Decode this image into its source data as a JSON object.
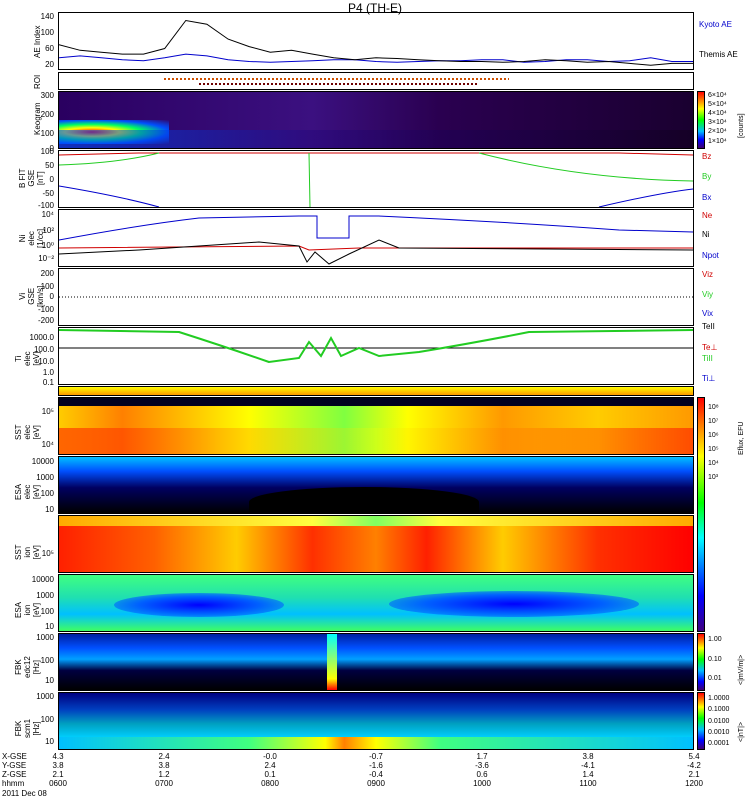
{
  "title": "P4 (TH-E)",
  "colors": {
    "red": "#d00000",
    "green": "#22cc22",
    "blue": "#0000cc",
    "black": "#000000"
  },
  "chart_data": [
    {
      "type": "line",
      "panel": "ae",
      "ylabel": "AE Index",
      "yticks": [
        "140",
        "120",
        "100",
        "80",
        "60",
        "40",
        "20"
      ],
      "ylim": [
        0,
        150
      ],
      "series": [
        {
          "name": "Kyoto AE",
          "color": "#0000cc"
        },
        {
          "name": "Themis AE",
          "color": "#000000"
        }
      ],
      "x_hours": [
        6,
        6.2,
        6.4,
        6.6,
        6.8,
        7.0,
        7.2,
        7.4,
        7.6,
        7.8,
        8.0,
        8.2,
        8.4,
        8.6,
        8.8,
        9.0,
        9.2,
        9.4,
        9.6,
        9.8,
        10.0,
        10.2,
        10.4,
        10.6,
        10.8,
        11.0,
        11.2,
        11.4,
        11.6,
        11.8,
        12.0
      ],
      "kyoto": [
        30,
        35,
        30,
        25,
        22,
        30,
        40,
        35,
        25,
        20,
        18,
        20,
        22,
        25,
        25,
        20,
        18,
        20,
        22,
        22,
        25,
        25,
        18,
        20,
        25,
        25,
        20,
        22,
        30,
        20,
        20
      ],
      "themis": [
        65,
        50,
        45,
        40,
        40,
        55,
        130,
        120,
        80,
        60,
        45,
        50,
        40,
        30,
        25,
        30,
        28,
        25,
        22,
        20,
        20,
        18,
        20,
        25,
        22,
        18,
        20,
        15,
        10,
        15,
        15
      ]
    },
    {
      "type": "line",
      "panel": "roi",
      "ylabel": "ROI",
      "note": "dotted bars"
    },
    {
      "type": "heatmap",
      "panel": "keogram",
      "ylabel": "Keogram",
      "yticks": [
        "300",
        "250",
        "200",
        "150",
        "100",
        "50",
        "0"
      ],
      "ylim": [
        0,
        300
      ],
      "colorbar": {
        "label": "[counts]",
        "ticks": [
          "6×10⁴",
          "5×10⁴",
          "4×10⁴",
          "3×10⁴",
          "2×10⁴",
          "1×10⁴"
        ]
      }
    },
    {
      "type": "line",
      "panel": "bfield",
      "ylabel": "B FIT\nGSE\n[nT]",
      "yticks": [
        "100",
        "50",
        "0",
        "-50",
        "-100"
      ],
      "ylim": [
        -100,
        100
      ],
      "series": [
        {
          "name": "Bz",
          "color": "#d00000"
        },
        {
          "name": "By",
          "color": "#22cc22"
        },
        {
          "name": "Bx",
          "color": "#0000cc"
        }
      ]
    },
    {
      "type": "line",
      "panel": "density",
      "ylabel": "Ni\nelec\n[1/cc]",
      "yticks": [
        "10⁴",
        "10²",
        "10⁰",
        "10⁻²"
      ],
      "ylim": [
        -3,
        5
      ],
      "series": [
        {
          "name": "Ne",
          "color": "#d00000"
        },
        {
          "name": "Ni",
          "color": "#000000"
        },
        {
          "name": "Npot",
          "color": "#0000cc"
        }
      ]
    },
    {
      "type": "line",
      "panel": "velocity",
      "ylabel": "Vi\nGSE\n[km/s]",
      "yticks": [
        "200",
        "100",
        "0",
        "-100",
        "-200"
      ],
      "ylim": [
        -250,
        250
      ],
      "series": [
        {
          "name": "Viz",
          "color": "#d00000"
        },
        {
          "name": "Viy",
          "color": "#22cc22"
        },
        {
          "name": "Vix",
          "color": "#0000cc"
        }
      ]
    },
    {
      "type": "line",
      "panel": "temperature",
      "ylabel": "Ti\nelec\n[eV]",
      "yticks": [
        "1000.0",
        "100.0",
        "10.0",
        "1.0",
        "0.1"
      ],
      "ylim": [
        -1.3,
        3.5
      ],
      "series": [
        {
          "name": "TeII",
          "color": "#000000"
        },
        {
          "name": "Te⊥",
          "color": "#d00000"
        },
        {
          "name": "TiII",
          "color": "#22cc22"
        },
        {
          "name": "Ti⊥",
          "color": "#0000cc"
        }
      ]
    },
    {
      "type": "heatmap",
      "panel": "sst_elec",
      "ylabel": "SST\nelec\n[eV]",
      "yticks": [
        "10⁵",
        "10⁴"
      ]
    },
    {
      "type": "heatmap",
      "panel": "esa_elec",
      "ylabel": "ESA\nelec\n[eV]",
      "yticks": [
        "10000",
        "1000",
        "100",
        "10"
      ]
    },
    {
      "type": "heatmap",
      "panel": "sst_ion",
      "ylabel": "SST\nion\n[eV]",
      "yticks": [
        "10⁵"
      ]
    },
    {
      "type": "heatmap",
      "panel": "esa_ion",
      "ylabel": "ESA\nion\n[eV]",
      "yticks": [
        "10000",
        "1000",
        "100",
        "10"
      ]
    },
    {
      "type": "heatmap",
      "panel": "fbk_edc12",
      "ylabel": "FBK\nedc12\n[Hz]",
      "yticks": [
        "1000",
        "100",
        "10"
      ],
      "colorbar": {
        "label": "<|mV/m|>",
        "ticks": [
          "1.00",
          "0.10",
          "0.01"
        ]
      }
    },
    {
      "type": "heatmap",
      "panel": "fbk_scm1",
      "ylabel": "FBK\nscm1\n[Hz]",
      "yticks": [
        "1000",
        "100",
        "10"
      ],
      "colorbar": {
        "label": "<|nT|>",
        "ticks": [
          "1.0000",
          "0.1000",
          "0.0100",
          "0.0010",
          "0.0001"
        ]
      }
    }
  ],
  "energy_colorbar": {
    "label": "Eflux, EFU",
    "ticks": [
      "10⁸",
      "10⁷",
      "10⁶",
      "10⁵",
      "10⁴",
      "10³"
    ]
  },
  "xaxis": {
    "row_labels": [
      "X-GSE",
      "Y-GSE",
      "Z-GSE",
      "hhmm",
      "2011 Dec 08"
    ],
    "ticks": [
      {
        "x": "4.3",
        "y": "3.8",
        "z": "2.1",
        "t": "0600"
      },
      {
        "x": "2.4",
        "y": "3.8",
        "z": "1.2",
        "t": "0700"
      },
      {
        "x": "-0.0",
        "y": "2.4",
        "z": "0.1",
        "t": "0800"
      },
      {
        "x": "-0.7",
        "y": "-1.6",
        "z": "-0.4",
        "t": "0900"
      },
      {
        "x": "1.7",
        "y": "-3.6",
        "z": "0.6",
        "t": "1000"
      },
      {
        "x": "3.8",
        "y": "-4.1",
        "z": "1.4",
        "t": "1100"
      },
      {
        "x": "5.4",
        "y": "-4.2",
        "z": "2.1",
        "t": "1200"
      }
    ]
  }
}
